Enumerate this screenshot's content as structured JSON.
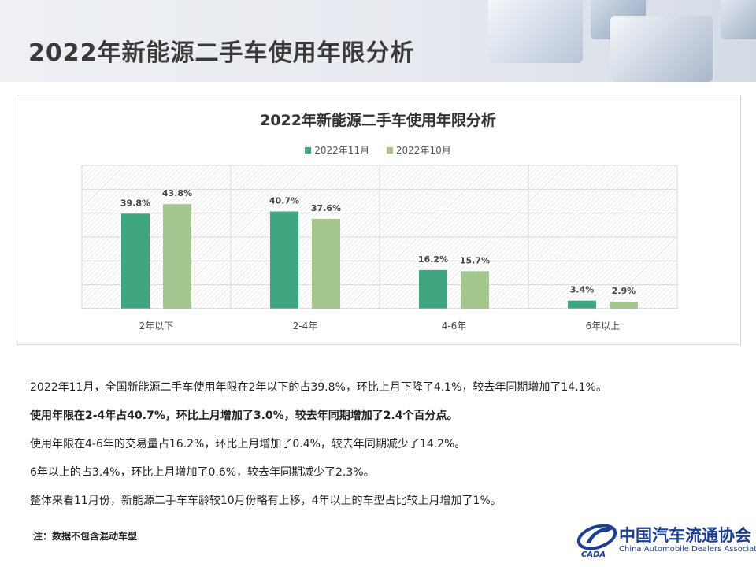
{
  "page": {
    "title": "2022年新能源二手车使用年限分析"
  },
  "chart_data": {
    "type": "bar",
    "title": "2022年新能源二手车使用年限分析",
    "categories": [
      "2年以下",
      "2-4年",
      "4-6年",
      "6年以上"
    ],
    "series": [
      {
        "name": "2022年11月",
        "values": [
          39.8,
          40.7,
          16.2,
          3.4
        ],
        "labels": [
          "39.8%",
          "40.7%",
          "16.2%",
          "3.4%"
        ],
        "color": "#3fa67f"
      },
      {
        "name": "2022年10月",
        "values": [
          43.8,
          37.6,
          15.7,
          2.9
        ],
        "labels": [
          "43.8%",
          "37.6%",
          "15.7%",
          "2.9%"
        ],
        "color": "#a3c78f"
      }
    ],
    "ylim": [
      0,
      60
    ],
    "grid": true,
    "legend_position": "top"
  },
  "notes": [
    "2022年11月，全国新能源二手车使用年限在2年以下的占39.8%，环比上月下降了4.1%，较去年同期增加了14.1%。",
    "使用年限在2-4年占40.7%，环比上月增加了3.0%，较去年同期增加了2.4个百分点。",
    "使用年限在4-6年的交易量占16.2%，环比上月增加了0.4%，较去年同期减少了14.2%。",
    "6年以上的占3.4%，环比上月增加了0.6%，较去年同期减少了2.3%。",
    "整体来看11月份，新能源二手车车龄较10月份略有上移，4年以上的车型占比较上月增加了1%。"
  ],
  "footnote": "注：数据不包含混动车型",
  "logo": {
    "cn": "中国汽车流通协会",
    "en": "China Automobile Dealers Association",
    "mark": "CADA"
  }
}
